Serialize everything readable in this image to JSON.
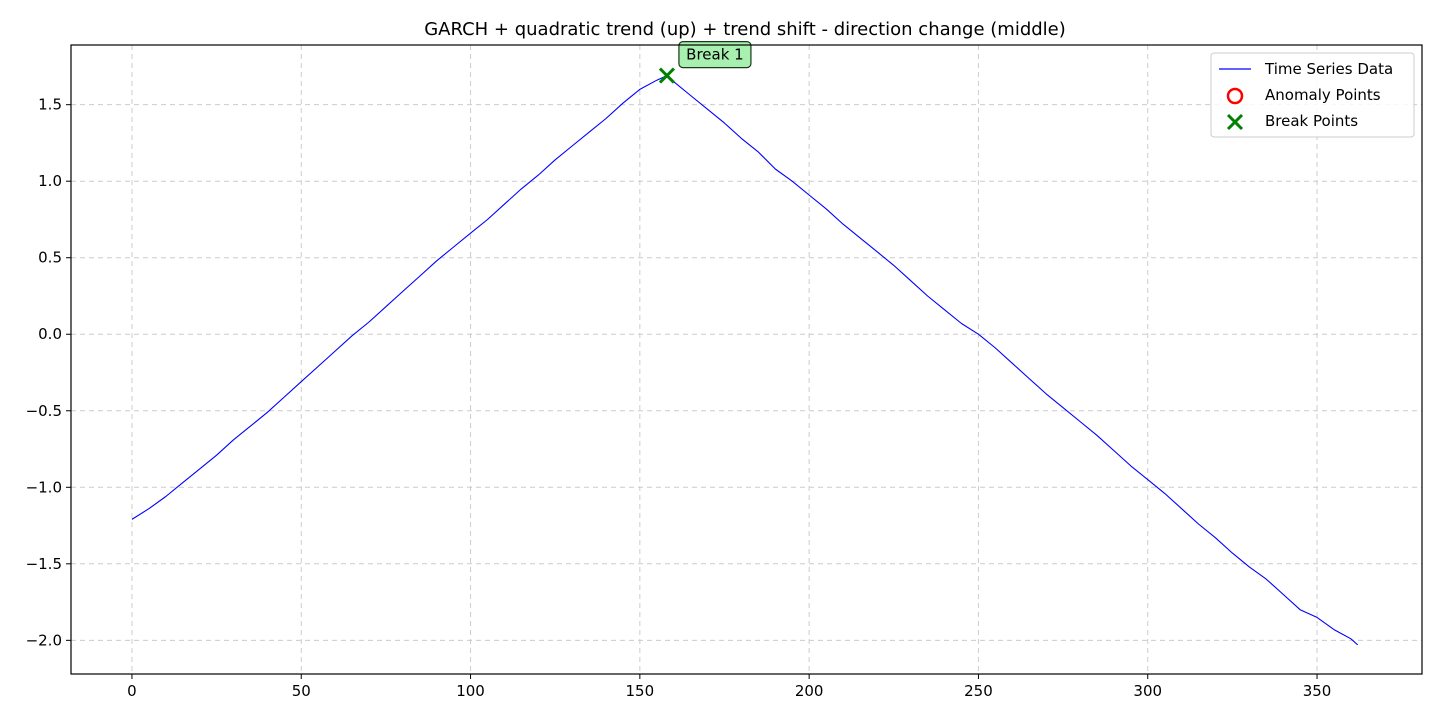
{
  "chart_data": {
    "type": "line",
    "title": "GARCH + quadratic trend (up) + trend shift - direction change (middle)",
    "xlabel": "",
    "ylabel": "",
    "xlim": [
      -18,
      381
    ],
    "ylim": [
      -2.22,
      1.89
    ],
    "x_ticks": [
      0,
      50,
      100,
      150,
      200,
      250,
      300,
      350
    ],
    "y_ticks": [
      -2.0,
      -1.5,
      -1.0,
      -0.5,
      0.0,
      0.5,
      1.0,
      1.5
    ],
    "x_tick_labels": [
      "0",
      "50",
      "100",
      "150",
      "200",
      "250",
      "300",
      "350"
    ],
    "y_tick_labels": [
      "−2.0",
      "−1.5",
      "−1.0",
      "−0.5",
      "0.0",
      "0.5",
      "1.0",
      "1.5"
    ],
    "grid": true,
    "legend_position": "top-right",
    "series": [
      {
        "name": "Time Series Data",
        "color": "#0000ff",
        "x": [
          0,
          5,
          10,
          15,
          20,
          25,
          30,
          35,
          40,
          45,
          50,
          55,
          60,
          65,
          70,
          75,
          80,
          85,
          90,
          95,
          100,
          105,
          110,
          115,
          120,
          125,
          130,
          135,
          140,
          145,
          150,
          155,
          158,
          160,
          165,
          170,
          175,
          180,
          185,
          190,
          195,
          200,
          205,
          210,
          215,
          220,
          225,
          230,
          235,
          240,
          245,
          250,
          255,
          260,
          265,
          270,
          275,
          280,
          285,
          290,
          295,
          300,
          305,
          310,
          315,
          320,
          325,
          330,
          335,
          340,
          345,
          350,
          355,
          360,
          362
        ],
        "y": [
          -1.21,
          -1.14,
          -1.06,
          -0.97,
          -0.88,
          -0.79,
          -0.69,
          -0.6,
          -0.51,
          -0.41,
          -0.31,
          -0.21,
          -0.11,
          -0.01,
          0.08,
          0.18,
          0.28,
          0.38,
          0.48,
          0.57,
          0.66,
          0.75,
          0.85,
          0.95,
          1.04,
          1.14,
          1.23,
          1.32,
          1.41,
          1.51,
          1.6,
          1.66,
          1.69,
          1.65,
          1.56,
          1.47,
          1.38,
          1.28,
          1.19,
          1.08,
          1.0,
          0.91,
          0.82,
          0.72,
          0.63,
          0.54,
          0.45,
          0.35,
          0.25,
          0.16,
          0.07,
          0.0,
          -0.09,
          -0.19,
          -0.29,
          -0.39,
          -0.48,
          -0.57,
          -0.66,
          -0.76,
          -0.86,
          -0.95,
          -1.04,
          -1.14,
          -1.24,
          -1.33,
          -1.43,
          -1.52,
          -1.6,
          -1.7,
          -1.8,
          -1.85,
          -1.93,
          -1.99,
          -2.03
        ]
      }
    ],
    "anomaly_points": [],
    "break_points": [
      {
        "x": 158,
        "y": 1.69,
        "label": "Break 1"
      }
    ],
    "legend": [
      {
        "label": "Time Series Data",
        "kind": "line",
        "color": "#0000ff"
      },
      {
        "label": "Anomaly Points",
        "kind": "circle",
        "color": "#ff0000"
      },
      {
        "label": "Break Points",
        "kind": "x",
        "color": "#008000"
      }
    ],
    "colors": {
      "line": "#0000ff",
      "anomaly": "#ff0000",
      "break": "#008000",
      "annotation_fill": "#a8f0b0"
    }
  }
}
